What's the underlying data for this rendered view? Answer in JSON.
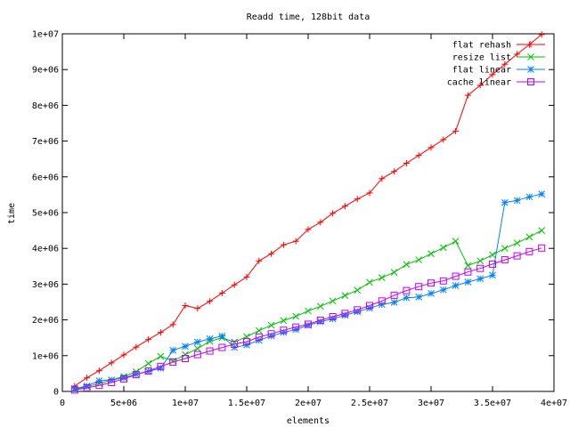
{
  "chart_data": {
    "type": "line",
    "title": "Readd time, 128bit data",
    "xlabel": "elements",
    "ylabel": "time",
    "xlim": [
      0,
      40000000
    ],
    "ylim": [
      0,
      10000000
    ],
    "x_ticks": [
      {
        "value": 0,
        "label": "0"
      },
      {
        "value": 5000000,
        "label": "5e+06"
      },
      {
        "value": 10000000,
        "label": "1e+07"
      },
      {
        "value": 15000000,
        "label": "1.5e+07"
      },
      {
        "value": 20000000,
        "label": "2e+07"
      },
      {
        "value": 25000000,
        "label": "2.5e+07"
      },
      {
        "value": 30000000,
        "label": "3e+07"
      },
      {
        "value": 35000000,
        "label": "3.5e+07"
      },
      {
        "value": 40000000,
        "label": "4e+07"
      }
    ],
    "y_ticks": [
      {
        "value": 0,
        "label": "0"
      },
      {
        "value": 1000000,
        "label": "1e+06"
      },
      {
        "value": 2000000,
        "label": "2e+06"
      },
      {
        "value": 3000000,
        "label": "3e+06"
      },
      {
        "value": 4000000,
        "label": "4e+06"
      },
      {
        "value": 5000000,
        "label": "5e+06"
      },
      {
        "value": 6000000,
        "label": "6e+06"
      },
      {
        "value": 7000000,
        "label": "7e+06"
      },
      {
        "value": 8000000,
        "label": "8e+06"
      },
      {
        "value": 9000000,
        "label": "9e+06"
      },
      {
        "value": 10000000,
        "label": "1e+07"
      }
    ],
    "grid": false,
    "legend_position": "top-right",
    "x": [
      1000000,
      2000000,
      3000000,
      4000000,
      5000000,
      6000000,
      7000000,
      8000000,
      9000000,
      10000000,
      11000000,
      12000000,
      13000000,
      14000000,
      15000000,
      16000000,
      17000000,
      18000000,
      19000000,
      20000000,
      21000000,
      22000000,
      23000000,
      24000000,
      25000000,
      26000000,
      27000000,
      28000000,
      29000000,
      30000000,
      31000000,
      32000000,
      33000000,
      34000000,
      35000000,
      36000000,
      37000000,
      38000000,
      39000000
    ],
    "series": [
      {
        "name": "flat rehash",
        "color": "#ff0000",
        "marker": "plus",
        "values": [
          150000,
          380000,
          580000,
          800000,
          1020000,
          1240000,
          1450000,
          1650000,
          1870000,
          2400000,
          2320000,
          2520000,
          2750000,
          2980000,
          3200000,
          3650000,
          3850000,
          4100000,
          4200000,
          4530000,
          4730000,
          4980000,
          5180000,
          5380000,
          5550000,
          5950000,
          6150000,
          6380000,
          6600000,
          6820000,
          7040000,
          7280000,
          8280000,
          8560000,
          8860000,
          9150000,
          9430000,
          9700000,
          9980000
        ]
      },
      {
        "name": "resize list",
        "color": "#00c000",
        "marker": "cross",
        "values": [
          60000,
          130000,
          220000,
          320000,
          420000,
          550000,
          780000,
          980000,
          850000,
          1030000,
          1200000,
          1400000,
          1500000,
          1380000,
          1530000,
          1700000,
          1850000,
          1980000,
          2100000,
          2250000,
          2380000,
          2530000,
          2680000,
          2830000,
          3050000,
          3180000,
          3330000,
          3550000,
          3680000,
          3850000,
          4020000,
          4200000,
          3520000,
          3650000,
          3820000,
          4000000,
          4150000,
          4320000,
          4500000
        ]
      },
      {
        "name": "flat linear",
        "color": "#0080ff",
        "marker": "star",
        "values": [
          80000,
          150000,
          300000,
          320000,
          380000,
          480000,
          560000,
          650000,
          1150000,
          1260000,
          1380000,
          1470000,
          1550000,
          1230000,
          1300000,
          1430000,
          1550000,
          1650000,
          1730000,
          1850000,
          1950000,
          2030000,
          2130000,
          2230000,
          2330000,
          2430000,
          2490000,
          2620000,
          2640000,
          2740000,
          2840000,
          2960000,
          3060000,
          3150000,
          3250000,
          5280000,
          5340000,
          5440000,
          5520000
        ]
      },
      {
        "name": "cache linear",
        "color": "#c000ff",
        "marker": "square",
        "values": [
          40000,
          100000,
          170000,
          250000,
          350000,
          470000,
          570000,
          700000,
          820000,
          920000,
          1030000,
          1130000,
          1230000,
          1320000,
          1390000,
          1520000,
          1610000,
          1710000,
          1800000,
          1880000,
          1990000,
          2090000,
          2180000,
          2280000,
          2400000,
          2530000,
          2690000,
          2820000,
          2930000,
          3030000,
          3090000,
          3220000,
          3340000,
          3440000,
          3560000,
          3680000,
          3790000,
          3910000,
          4010000
        ]
      }
    ]
  }
}
